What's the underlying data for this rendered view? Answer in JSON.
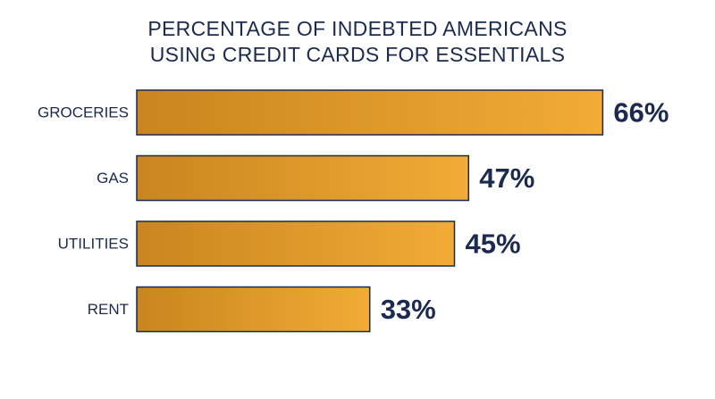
{
  "chart_data": {
    "type": "bar",
    "orientation": "horizontal",
    "title_lines": [
      "PERCENTAGE OF INDEBTED AMERICANS",
      "USING CREDIT CARDS FOR ESSENTIALS"
    ],
    "categories": [
      "GROCERIES",
      "GAS",
      "UTILITIES",
      "RENT"
    ],
    "values": [
      66,
      47,
      45,
      33
    ],
    "value_labels": [
      "66%",
      "47%",
      "45%",
      "33%"
    ],
    "unit": "%",
    "xlim": [
      0,
      100
    ],
    "grid": false,
    "legend": "none",
    "xlabel": "",
    "ylabel": "",
    "colors": {
      "bar_gradient_start": "#c9851f",
      "bar_gradient_end": "#f2ab36",
      "bar_stroke": "#1b2a4e",
      "text": "#1b2a4e"
    }
  }
}
